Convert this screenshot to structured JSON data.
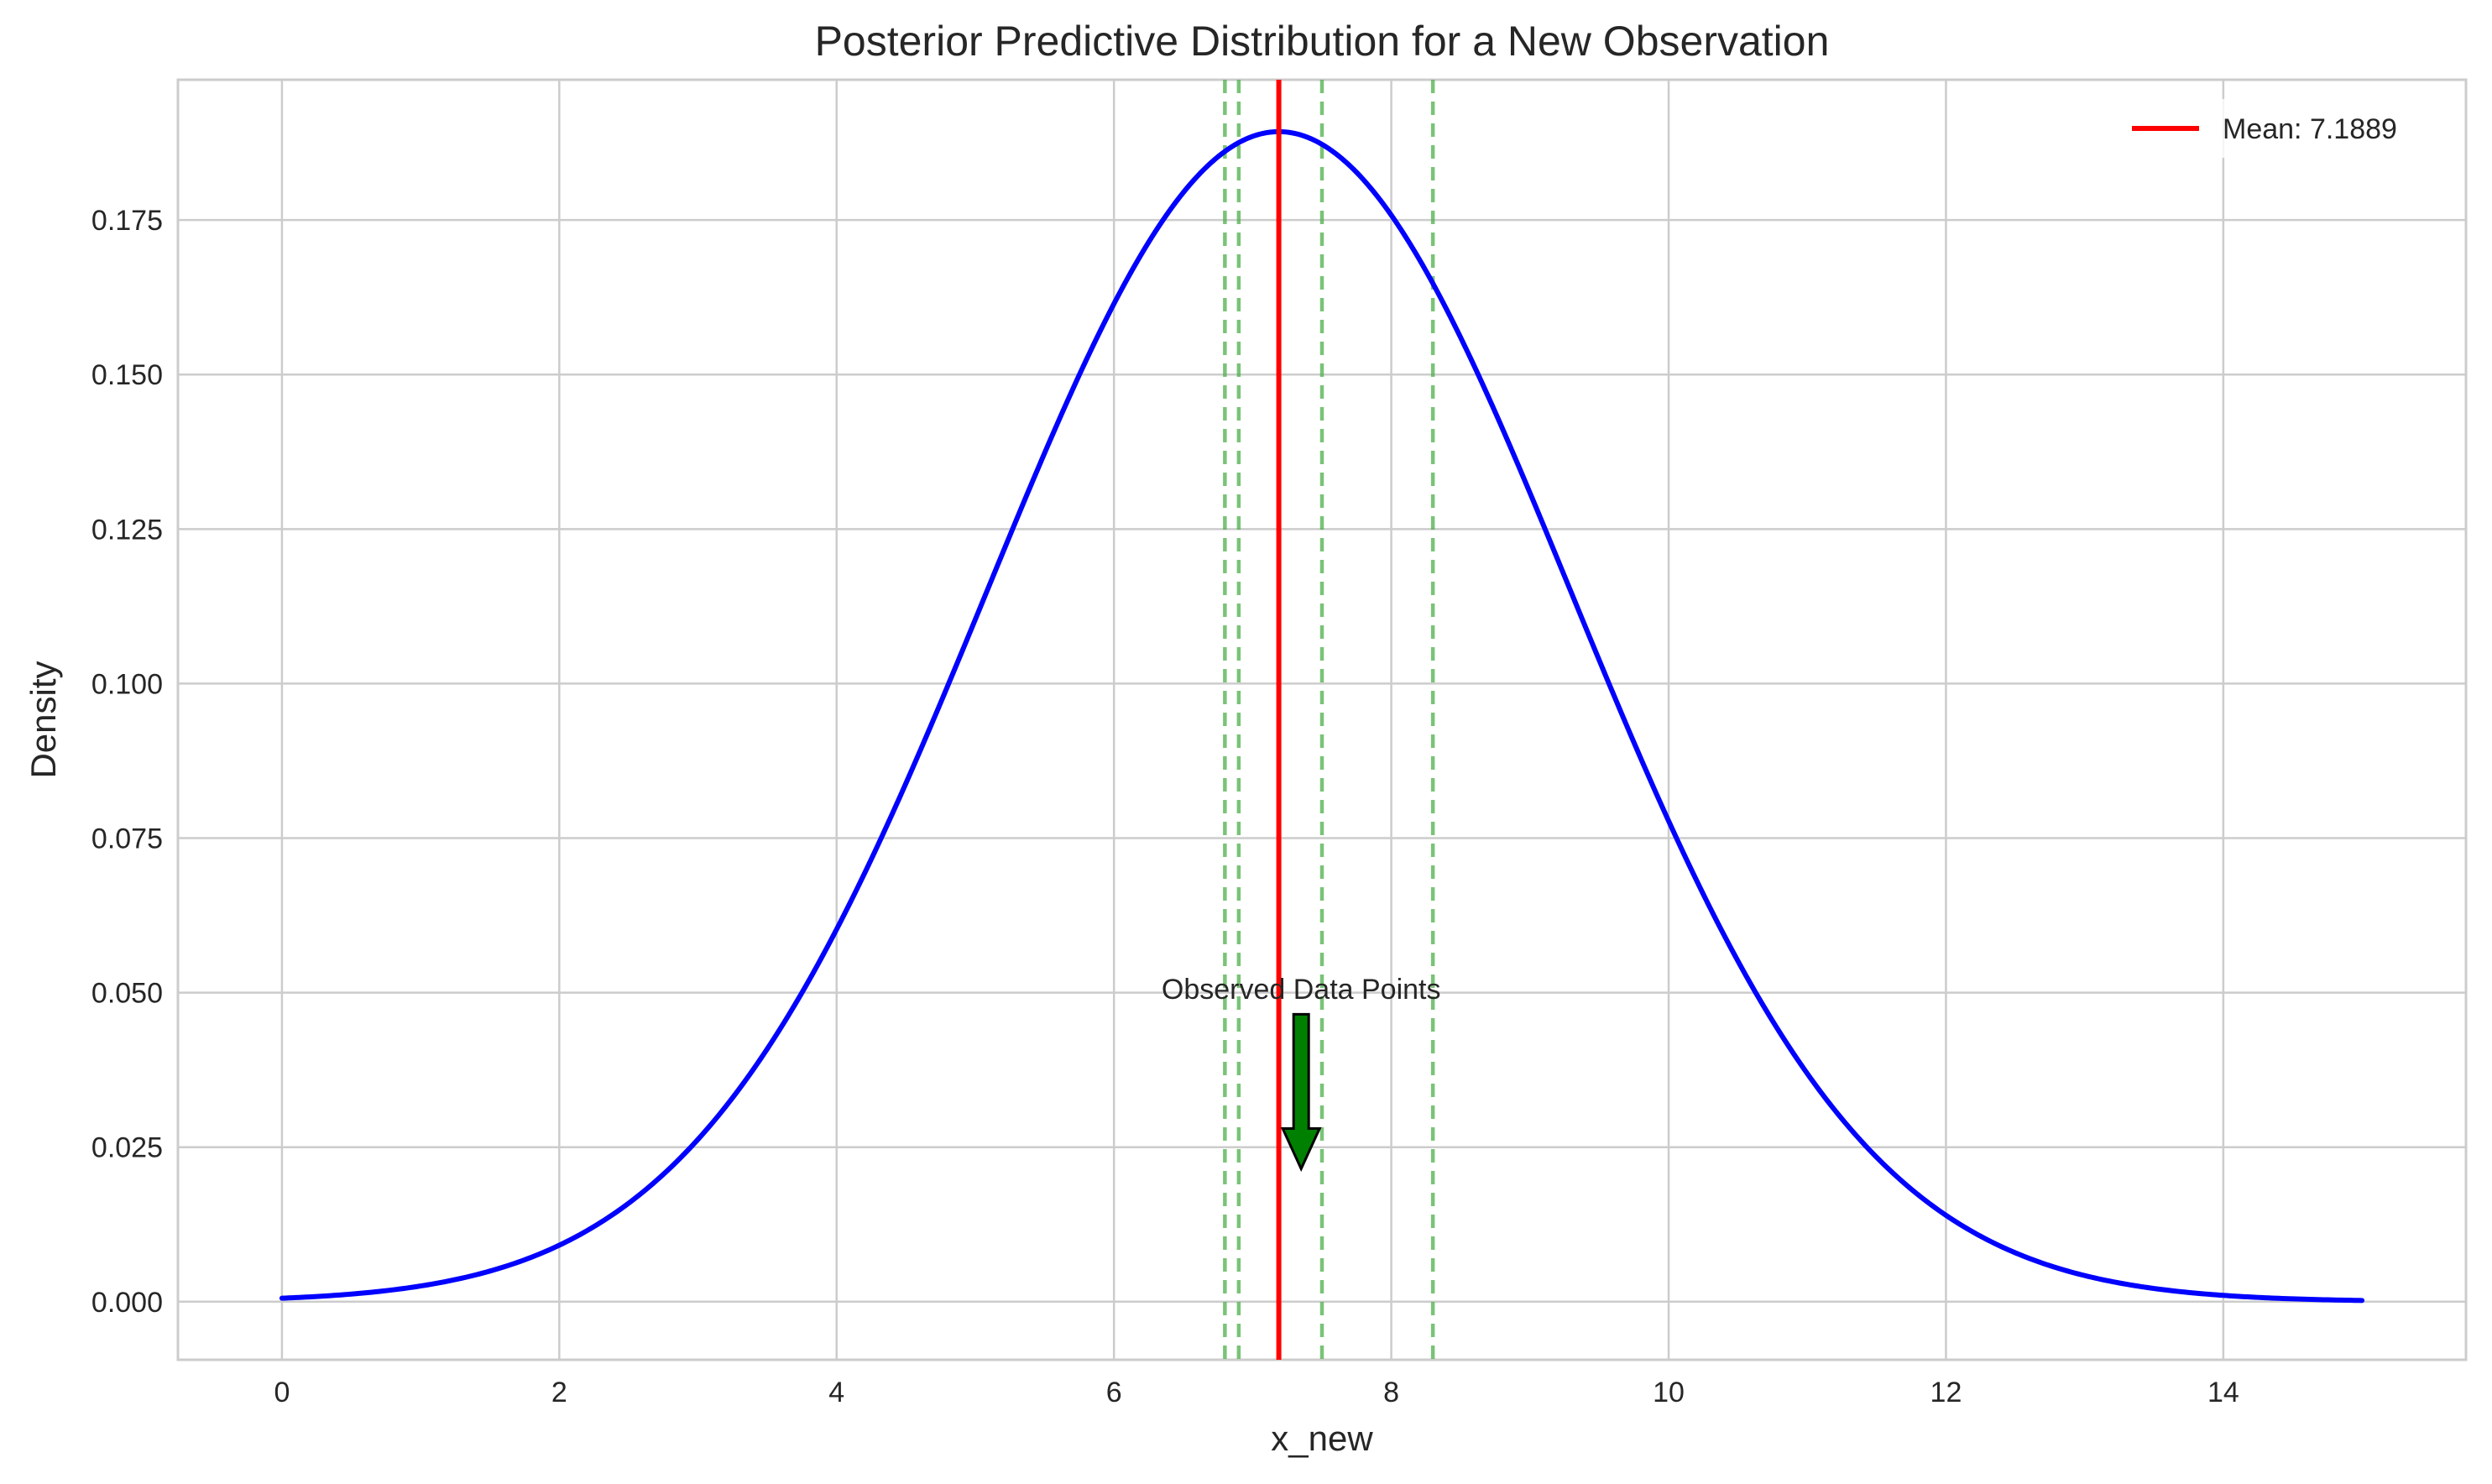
{
  "chart_data": {
    "type": "line",
    "title": "Posterior Predictive Distribution for a New Observation",
    "xlabel": "x_new",
    "ylabel": "Density",
    "xlim": [
      -0.75,
      15.75
    ],
    "ylim": [
      -0.0094,
      0.1977
    ],
    "x_ticks": [
      0,
      2,
      4,
      6,
      8,
      10,
      12,
      14
    ],
    "x_tick_labels": [
      "0",
      "2",
      "4",
      "6",
      "8",
      "10",
      "12",
      "14"
    ],
    "y_ticks": [
      0.0,
      0.025,
      0.05,
      0.075,
      0.1,
      0.125,
      0.15,
      0.175
    ],
    "y_tick_labels": [
      "0.000",
      "0.025",
      "0.050",
      "0.075",
      "0.100",
      "0.125",
      "0.150",
      "0.175"
    ],
    "grid": true,
    "legend_position": "top-right",
    "series": [
      {
        "kind": "density-curve",
        "color": "#0000ff",
        "x_range": [
          0,
          15
        ],
        "mean": 7.1889,
        "peak_density": 0.1893,
        "points": [
          [
            0,
            0.0007
          ],
          [
            1,
            0.0026
          ],
          [
            2,
            0.0093
          ],
          [
            3,
            0.0267
          ],
          [
            4,
            0.0603
          ],
          [
            5,
            0.108
          ],
          [
            6,
            0.1613
          ],
          [
            7,
            0.1887
          ],
          [
            8,
            0.1772
          ],
          [
            9,
            0.1376
          ],
          [
            10,
            0.0779
          ],
          [
            11,
            0.0364
          ],
          [
            12,
            0.014
          ],
          [
            13,
            0.0047
          ],
          [
            14,
            0.0013
          ],
          [
            15,
            0.0004
          ]
        ]
      },
      {
        "kind": "mean-line",
        "name": "Mean: 7.1889",
        "x": 7.1889,
        "color": "#ff0000"
      },
      {
        "kind": "observed-lines",
        "color": "#4daf4a",
        "x": [
          6.8,
          6.9,
          7.5,
          8.3
        ]
      }
    ],
    "annotations": [
      {
        "text": "Observed Data Points",
        "text_x": 7.35,
        "text_y": 0.049,
        "arrow_tail_x": 7.35,
        "arrow_tail_y": 0.0465,
        "arrow_head_x": 7.35,
        "arrow_head_y": 0.0215,
        "color": "#008000"
      }
    ]
  }
}
